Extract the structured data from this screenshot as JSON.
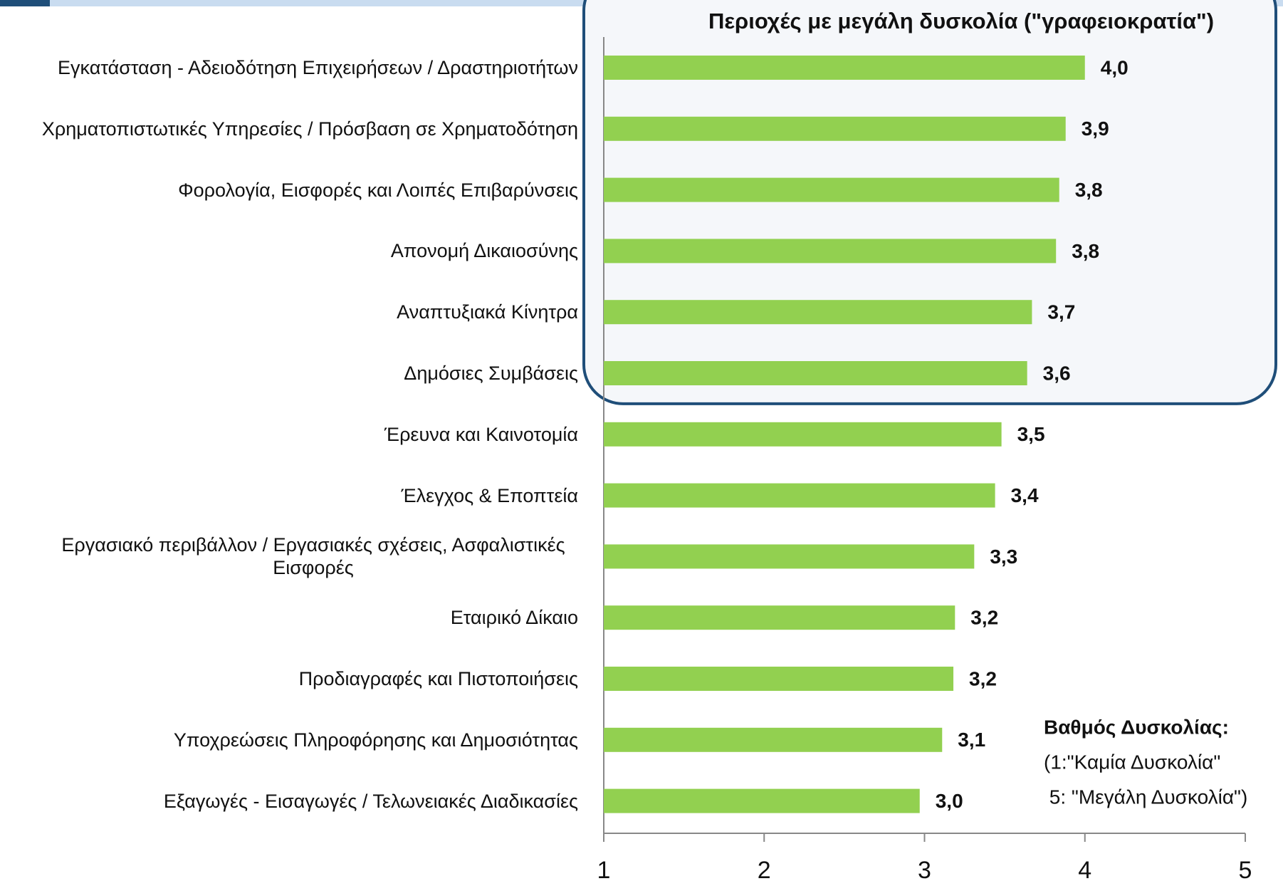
{
  "chart_data": {
    "type": "bar",
    "orientation": "horizontal",
    "title": "Περιοχές με μεγάλη δυσκολία (\"γραφειοκρατία\")",
    "categories": [
      "Εγκατάσταση - Αδειοδότηση Επιχειρήσεων / Δραστηριοτήτων",
      "Χρηματοπιστωτικές Υπηρεσίες / Πρόσβαση σε Χρηματοδότηση",
      "Φορολογία, Εισφορές και Λοιπές Επιβαρύνσεις",
      "Απονομή Δικαιοσύνης",
      "Αναπτυξιακά Κίνητρα",
      "Δημόσιες Συμβάσεις",
      "Έρευνα και Καινοτομία",
      "Έλεγχος & Εποπτεία",
      "Εργασιακό περιβάλλον / Εργασιακές σχέσεις, Ασφαλιστικές Εισφορές",
      "Εταιρικό Δίκαιο",
      "Προδιαγραφές και Πιστοποιήσεις",
      "Υποχρεώσεις Πληροφόρησης και Δημοσιότητας",
      "Εξαγωγές - Εισαγωγές / Τελωνειακές Διαδικασίες"
    ],
    "values": [
      4.0,
      3.88,
      3.84,
      3.82,
      3.67,
      3.64,
      3.48,
      3.44,
      3.31,
      3.19,
      3.18,
      3.11,
      2.97
    ],
    "value_labels": [
      "4,0",
      "3,9",
      "3,8",
      "3,8",
      "3,7",
      "3,6",
      "3,5",
      "3,4",
      "3,3",
      "3,2",
      "3,2",
      "3,1",
      "3,0"
    ],
    "color": "#92d050",
    "xlim": [
      1,
      5
    ],
    "xticks": [
      1,
      2,
      3,
      4,
      5
    ],
    "highlight_count": 6,
    "note": [
      "Βαθμός Δυσκολίας:",
      "(1:\"Καμία Δυσκολία\"",
      " 5: \"Μεγάλη Δυσκολία\")"
    ]
  }
}
